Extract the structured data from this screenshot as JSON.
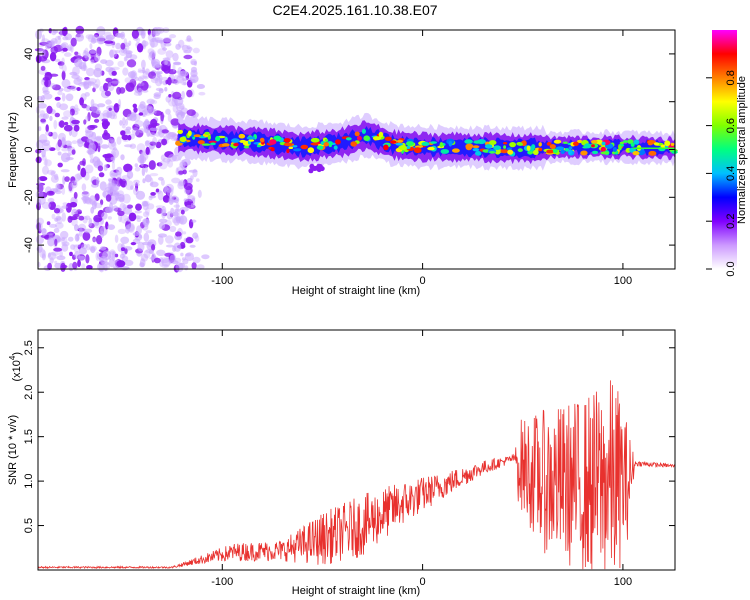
{
  "title": "C2E4.2025.161.10.38.E07",
  "chart_data": [
    {
      "type": "heatmap",
      "name": "spectrogram",
      "xlabel": "Height of straight line (km)",
      "ylabel": "Frequency (Hz)",
      "xlim": [
        -192,
        126
      ],
      "ylim": [
        -50,
        50
      ],
      "xticks": [
        -100,
        0,
        100
      ],
      "yticks": [
        -40,
        -20,
        0,
        20,
        40
      ],
      "noise_region_x": [
        -192,
        -108
      ],
      "signal_start_x": -122,
      "signal_center_hz": [
        {
          "x": -122,
          "y": 5
        },
        {
          "x": -100,
          "y": 4
        },
        {
          "x": -80,
          "y": 3
        },
        {
          "x": -60,
          "y": 1
        },
        {
          "x": -40,
          "y": 3
        },
        {
          "x": -28,
          "y": 6
        },
        {
          "x": -15,
          "y": 2
        },
        {
          "x": 0,
          "y": 1
        },
        {
          "x": 20,
          "y": 1
        },
        {
          "x": 50,
          "y": 0.5
        },
        {
          "x": 70,
          "y": 1
        },
        {
          "x": 100,
          "y": 1
        },
        {
          "x": 126,
          "y": 0.5
        }
      ],
      "colorbar": {
        "label": "Normalized spectral amplitude",
        "range": [
          0,
          1
        ],
        "ticks": [
          "0.0",
          "0.2",
          "0.4",
          "0.6",
          "0.8"
        ],
        "colormap": [
          "#ffffff",
          "#cc99ff",
          "#8000ff",
          "#0000ff",
          "#00bfff",
          "#00ff80",
          "#80ff00",
          "#ffff00",
          "#ff8000",
          "#ff0000",
          "#ff00ff"
        ]
      }
    },
    {
      "type": "line",
      "name": "snr",
      "xlabel": "Height of straight line (km)",
      "ylabel": "SNR (10 * v/v)",
      "yscale_label": "(x10",
      "yscale_exp": "4",
      "xlim": [
        -192,
        126
      ],
      "ylim": [
        0,
        2.7
      ],
      "xticks": [
        -100,
        0,
        100
      ],
      "yticks": [
        "0.5",
        "1.0",
        "1.5",
        "2.0",
        "2.5"
      ],
      "color": "#e8312e",
      "envelope": [
        {
          "x": -192,
          "base": 0.03,
          "amp": 0.01
        },
        {
          "x": -125,
          "base": 0.03,
          "amp": 0.01
        },
        {
          "x": -110,
          "base": 0.12,
          "amp": 0.05
        },
        {
          "x": -95,
          "base": 0.2,
          "amp": 0.1
        },
        {
          "x": -70,
          "base": 0.22,
          "amp": 0.12
        },
        {
          "x": -50,
          "base": 0.35,
          "amp": 0.3
        },
        {
          "x": -30,
          "base": 0.5,
          "amp": 0.35
        },
        {
          "x": -10,
          "base": 0.75,
          "amp": 0.25
        },
        {
          "x": 10,
          "base": 0.95,
          "amp": 0.15
        },
        {
          "x": 30,
          "base": 1.15,
          "amp": 0.08
        },
        {
          "x": 46,
          "base": 1.26,
          "amp": 0.04
        },
        {
          "x": 48,
          "base": 1.2,
          "amp": 0.5
        },
        {
          "x": 60,
          "base": 1.0,
          "amp": 0.8
        },
        {
          "x": 80,
          "base": 0.95,
          "amp": 1.0
        },
        {
          "x": 96,
          "base": 1.0,
          "amp": 1.2
        },
        {
          "x": 103,
          "base": 1.0,
          "amp": 0.6
        },
        {
          "x": 106,
          "base": 1.2,
          "amp": 0.03
        },
        {
          "x": 126,
          "base": 1.17,
          "amp": 0.02
        }
      ]
    }
  ]
}
